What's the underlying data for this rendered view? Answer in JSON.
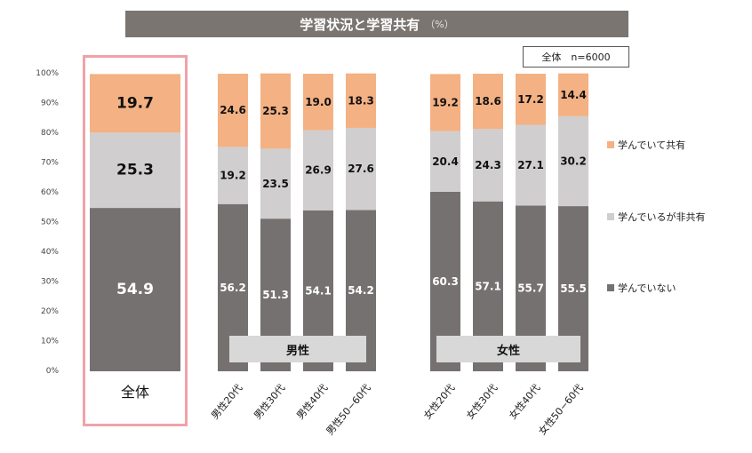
{
  "title": "学習状況と学習共有",
  "title_unit": "（%）",
  "sample": "全体　n=6000",
  "colors": {
    "share": "#f4b183",
    "no_share": "#d0cece",
    "not_learning": "#767171"
  },
  "legend": [
    {
      "name": "学んでいて共有",
      "color": "#f4b183"
    },
    {
      "name": "学んでいるが非共有",
      "color": "#d0cece"
    },
    {
      "name": "学んでいない",
      "color": "#767171"
    }
  ],
  "groups": {
    "male": "男性",
    "female": "女性"
  },
  "total_label": "全体",
  "chart_data": {
    "type": "bar",
    "stacked": true,
    "ylim": [
      0,
      100
    ],
    "yticks": [
      "0%",
      "10%",
      "20%",
      "30%",
      "40%",
      "50%",
      "60%",
      "70%",
      "80%",
      "90%",
      "100%"
    ],
    "categories": [
      "全体",
      "男性20代",
      "男性30代",
      "男性40代",
      "男性50−60代",
      "女性20代",
      "女性30代",
      "女性40代",
      "女性50−60代"
    ],
    "series": [
      {
        "name": "学んでいない",
        "values": [
          54.9,
          56.2,
          51.3,
          54.1,
          54.2,
          60.3,
          57.1,
          55.7,
          55.5
        ]
      },
      {
        "name": "学んでいるが非共有",
        "values": [
          25.3,
          19.2,
          23.5,
          26.9,
          27.6,
          20.4,
          24.3,
          27.1,
          30.2
        ]
      },
      {
        "name": "学んでいて共有",
        "values": [
          19.7,
          24.6,
          25.3,
          19.0,
          18.3,
          19.2,
          18.6,
          17.2,
          14.4
        ]
      }
    ],
    "value_labels": [
      [
        "54.9",
        "56.2",
        "51.3",
        "54.1",
        "54.2",
        "60.3",
        "57.1",
        "55.7",
        "55.5"
      ],
      [
        "25.3",
        "19.2",
        "23.5",
        "26.9",
        "27.6",
        "20.4",
        "24.3",
        "27.1",
        "30.2"
      ],
      [
        "19.7",
        "24.6",
        "25.3",
        "19.0",
        "18.3",
        "19.2",
        "18.6",
        "17.2",
        "14.4"
      ]
    ]
  }
}
